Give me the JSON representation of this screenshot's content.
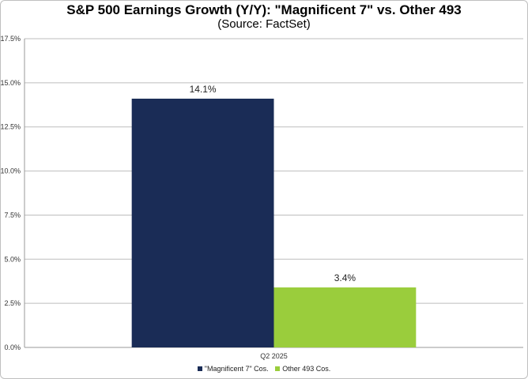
{
  "chart_data": {
    "type": "bar",
    "title": "S&P 500 Earnings Growth (Y/Y): \"Magnificent 7\" vs. Other 493",
    "subtitle": "(Source: FactSet)",
    "xlabel": "",
    "ylabel": "",
    "categories": [
      "Q2 2025"
    ],
    "series": [
      {
        "name": "\"Magnificent 7\" Cos.",
        "values": [
          14.1
        ],
        "labels": [
          "14.1%"
        ],
        "color": "#1a2c56"
      },
      {
        "name": "Other 493 Cos.",
        "values": [
          3.4
        ],
        "labels": [
          "3.4%"
        ],
        "color": "#9acd3c"
      }
    ],
    "ylim": [
      0,
      17.5
    ],
    "yticks": [
      0,
      2.5,
      5,
      7.5,
      10,
      12.5,
      15,
      17.5
    ],
    "ytick_labels": [
      "0.0%",
      "2.5%",
      "5.0%",
      "7.5%",
      "10.0%",
      "12.5%",
      "15.0%",
      "17.5%"
    ],
    "grid": true,
    "legend_position": "bottom"
  }
}
